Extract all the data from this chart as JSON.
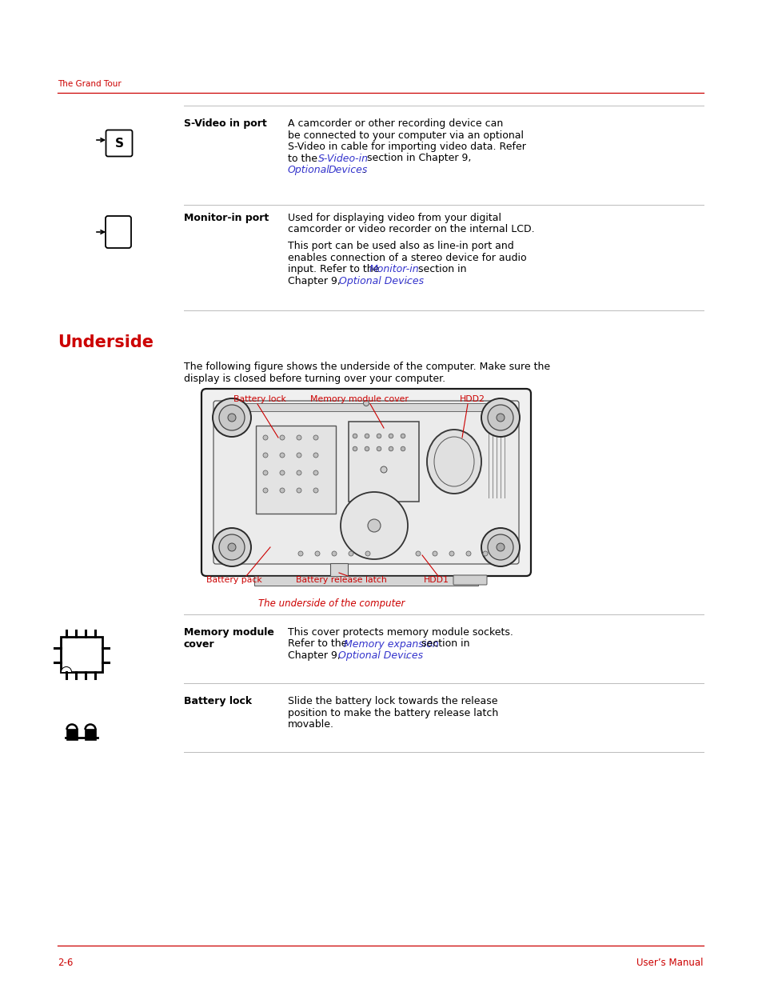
{
  "bg_color": "#ffffff",
  "header_text": "The Grand Tour",
  "header_color": "#cc0000",
  "section_title": "Underside",
  "section_title_color": "#cc0000",
  "svideo_label": "S-Video in port",
  "svideo_body": "A camcorder or other recording device can\nbe connected to your computer via an optional\nS-Video in cable for importing video data. Refer\nto the S-Video-in section in Chapter 9, Optional\nDevices.",
  "svideo_link1": "S-Video-in",
  "svideo_link2": "Optional",
  "svideo_link3": "Devices",
  "monitor_label": "Monitor-in port",
  "monitor_body1": "Used for displaying video from your digital\ncamcorder or video recorder on the internal LCD.",
  "monitor_body2": "This port can be used also as line-in port and\nenables connection of a stereo device for audio\ninput. Refer to the Monitor-in section in\nChapter 9, Optional Devices.",
  "monitor_link1": "Monitor-in",
  "monitor_link2": "Optional Devices",
  "section_intro": "The following figure shows the underside of the computer. Make sure the\ndisplay is closed before turning over your computer.",
  "fig_label_battery_lock": "Battery lock",
  "fig_label_memory": "Memory module cover",
  "fig_label_hdd2": "HDD2",
  "fig_label_battery_pack": "Battery pack",
  "fig_label_latch": "Battery release latch",
  "fig_label_hdd1": "HDD1",
  "fig_caption": "The underside of the computer",
  "memory_label": "Memory module\ncover",
  "memory_body": "This cover protects memory module sockets.\nRefer to the Memory expansion section in\nChapter 9, Optional Devices.",
  "memory_link1": "Memory expansion",
  "memory_link2": "Optional Devices",
  "battery_label": "Battery lock",
  "battery_body": "Slide the battery lock towards the release\nposition to make the battery release latch\nmovable.",
  "footer_left": "2-6",
  "footer_right": "User’s Manual",
  "red": "#cc0000",
  "blue": "#3333cc",
  "black": "#000000",
  "gray_line": "#bbbbbb",
  "white": "#ffffff"
}
